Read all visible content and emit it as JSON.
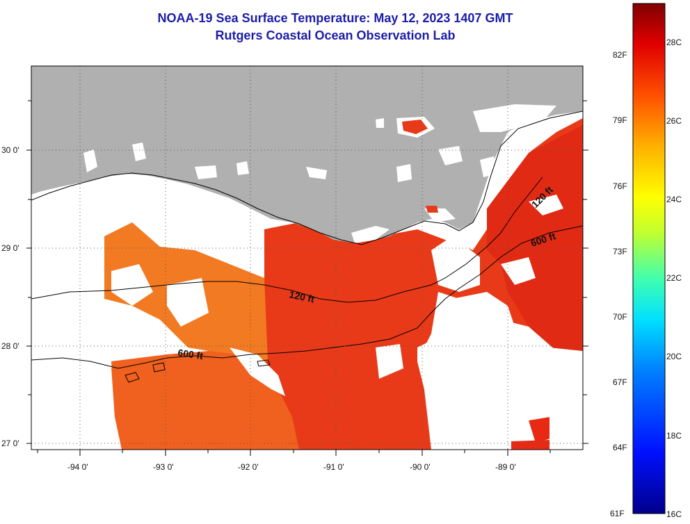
{
  "header": {
    "title": "NOAA-19 Sea Surface Temperature:  May 12, 2023 1407 GMT",
    "subtitle": "Rutgers Coastal Ocean Observation Lab"
  },
  "map": {
    "lat_labels": [
      "30 0'",
      "29 0'",
      "28 0'",
      "27 0'"
    ],
    "lon_labels": [
      "-94 0'",
      "-93 0'",
      "-92 0'",
      "-91 0'",
      "-90 0'",
      "-89 0'"
    ],
    "contours": [
      {
        "label": "120 ft"
      },
      {
        "label": "600 ft"
      },
      {
        "label": "600 ft"
      },
      {
        "label": "120 ft"
      }
    ],
    "colors": {
      "land": "#b0b0b0",
      "cloud": "#ffffff",
      "warm": "#f0501a",
      "warmer": "#e02a14",
      "cool": "#f88a22"
    }
  },
  "colorbar": {
    "fahrenheit_labels": [
      "82F",
      "79F",
      "76F",
      "73F",
      "70F",
      "67F",
      "64F",
      "61F"
    ],
    "celsius_labels": [
      "28C",
      "26C",
      "24C",
      "22C",
      "20C",
      "18C",
      "16C"
    ]
  }
}
